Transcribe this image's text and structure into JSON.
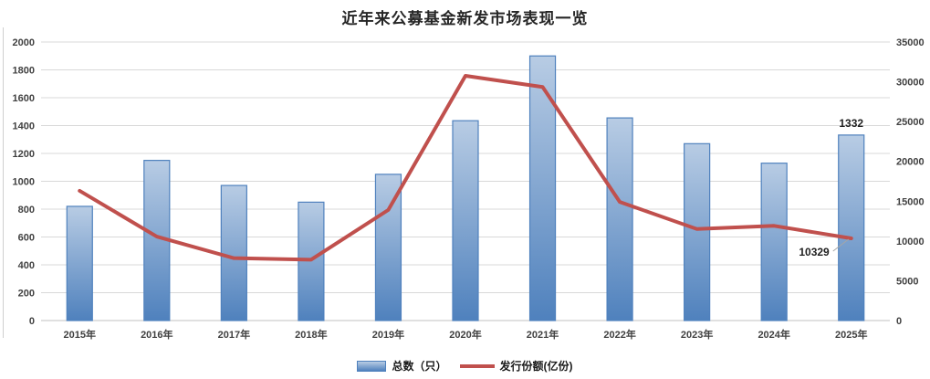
{
  "title": "近年来公募基金新发市场表现一览",
  "legend": {
    "bar_label": "总数（只）",
    "line_label": "发行份额(亿份)"
  },
  "colors": {
    "bar_top": "#b8cce4",
    "bar_bottom": "#4f81bd",
    "bar_border": "#4f81bd",
    "line": "#c0504d",
    "grid": "#d9d9d9",
    "axis_line": "#c0c0c0",
    "axis_text": "#404040",
    "title_text": "#262626",
    "data_label_text": "#1f1f1f",
    "leader_line": "#a6a6a6"
  },
  "chart_data": {
    "type": "bar",
    "subtype": "combo-bar-line-dual-axis",
    "title": "近年来公募基金新发市场表现一览",
    "categories": [
      "2015年",
      "2016年",
      "2017年",
      "2018年",
      "2019年",
      "2020年",
      "2021年",
      "2022年",
      "2023年",
      "2024年",
      "2025年"
    ],
    "series": [
      {
        "name": "总数（只）",
        "type": "bar",
        "axis": "left",
        "values": [
          820,
          1150,
          970,
          850,
          1050,
          1435,
          1900,
          1455,
          1270,
          1130,
          1332
        ]
      },
      {
        "name": "发行份额(亿份)",
        "type": "line",
        "axis": "right",
        "values": [
          16300,
          10550,
          7840,
          7650,
          13900,
          30750,
          29350,
          14900,
          11500,
          11900,
          10329
        ]
      }
    ],
    "left_axis": {
      "min": 0,
      "max": 2000,
      "step": 200,
      "ticks": [
        "0",
        "200",
        "400",
        "600",
        "800",
        "1000",
        "1200",
        "1400",
        "1600",
        "1800",
        "2000"
      ]
    },
    "right_axis": {
      "min": 0,
      "max": 35000,
      "step": 5000,
      "ticks": [
        "0",
        "5000",
        "10000",
        "15000",
        "20000",
        "25000",
        "30000",
        "35000"
      ]
    },
    "grid": "horizontal",
    "legend_position": "bottom",
    "data_labels": {
      "bar_last": "1332",
      "line_last": "10329"
    }
  }
}
